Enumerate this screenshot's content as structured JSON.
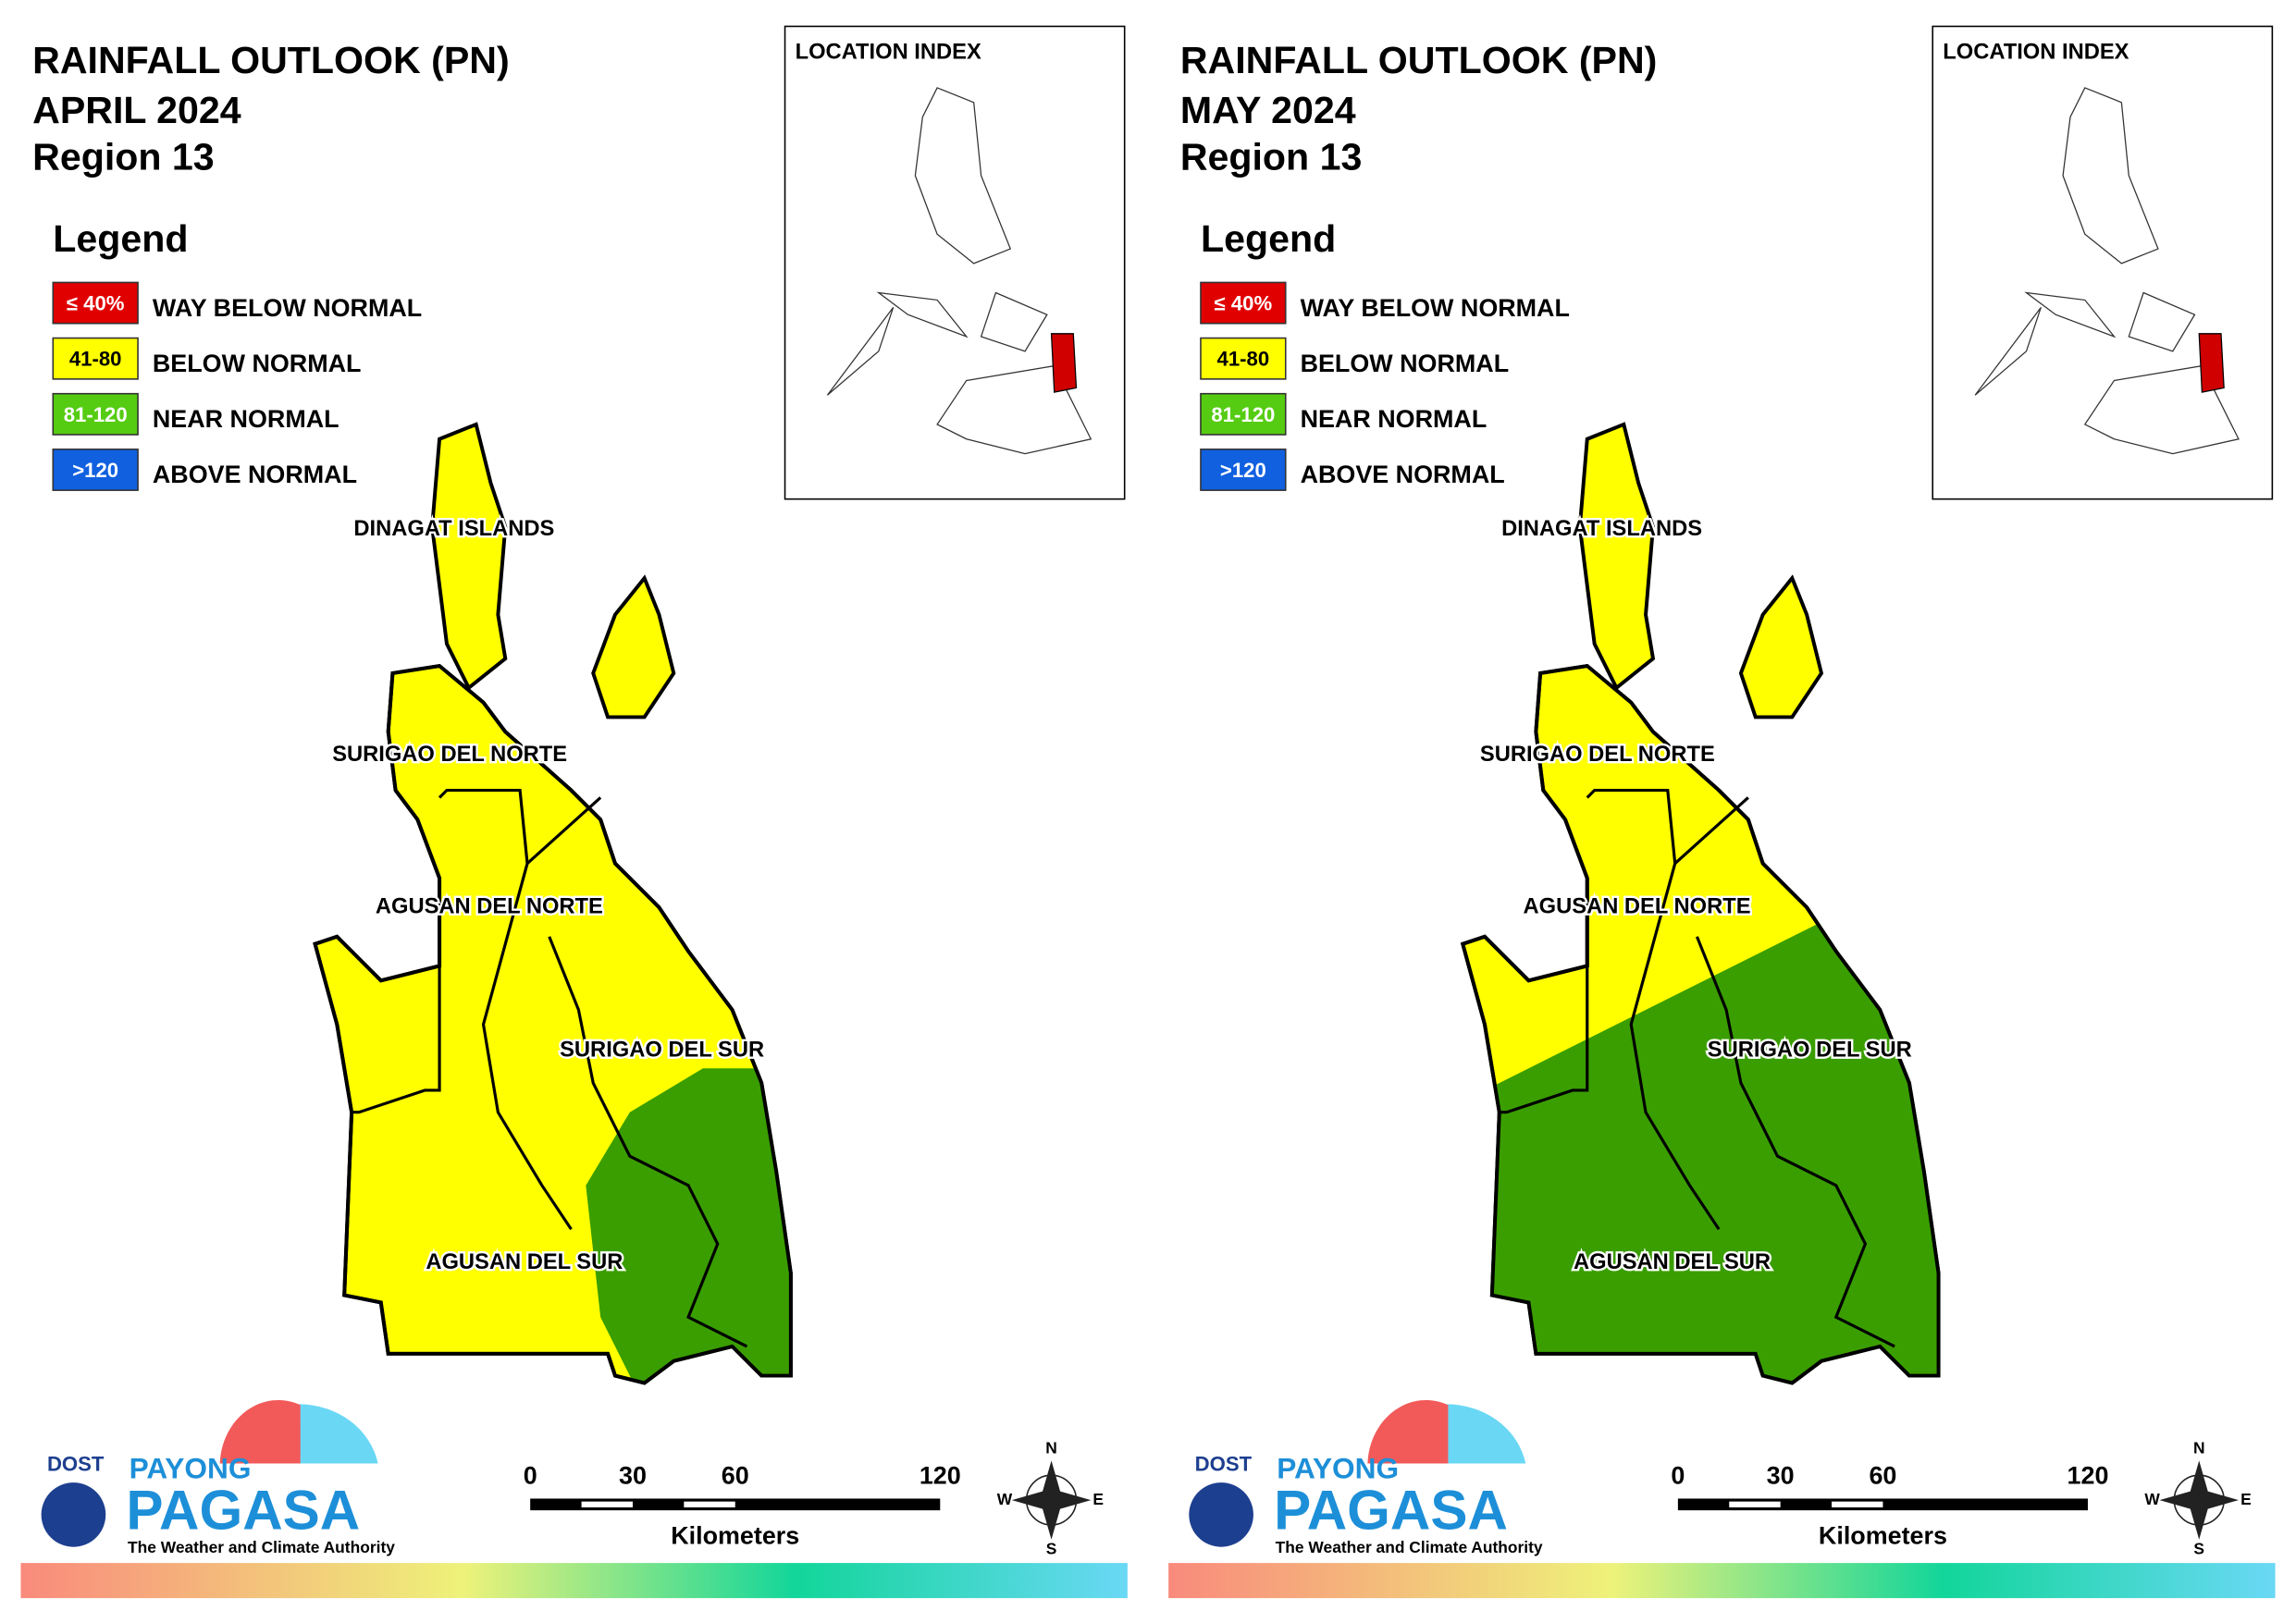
{
  "panels": [
    {
      "title": "RAINFALL OUTLOOK (PN)",
      "month": "APRIL 2024",
      "region": "Region 13"
    },
    {
      "title": "RAINFALL OUTLOOK (PN)",
      "month": "MAY 2024",
      "region": "Region 13"
    }
  ],
  "location_index": "LOCATION INDEX",
  "legend": {
    "title": "Legend",
    "items": [
      {
        "range": "≤ 40%",
        "label": "WAY BELOW NORMAL",
        "color": "#e00000"
      },
      {
        "range": "41-80",
        "label": "BELOW NORMAL",
        "color": "#ffff00"
      },
      {
        "range": "81-120",
        "label": "NEAR NORMAL",
        "color": "#55cc11"
      },
      {
        "range": ">120",
        "label": "ABOVE NORMAL",
        "color": "#1060e0"
      }
    ]
  },
  "provinces": [
    "DINAGAT ISLANDS",
    "SURIGAO DEL NORTE",
    "AGUSAN DEL NORTE",
    "SURIGAO DEL SUR",
    "AGUSAN DEL SUR"
  ],
  "scale": {
    "ticks": [
      0,
      30,
      60,
      120
    ],
    "unit": "Kilometers"
  },
  "compass": [
    "N",
    "E",
    "S",
    "W"
  ],
  "logo": {
    "org": "DOST",
    "name1": "PAYONG",
    "name2": "PAGASA",
    "tagline": "The Weather and Climate Authority"
  }
}
